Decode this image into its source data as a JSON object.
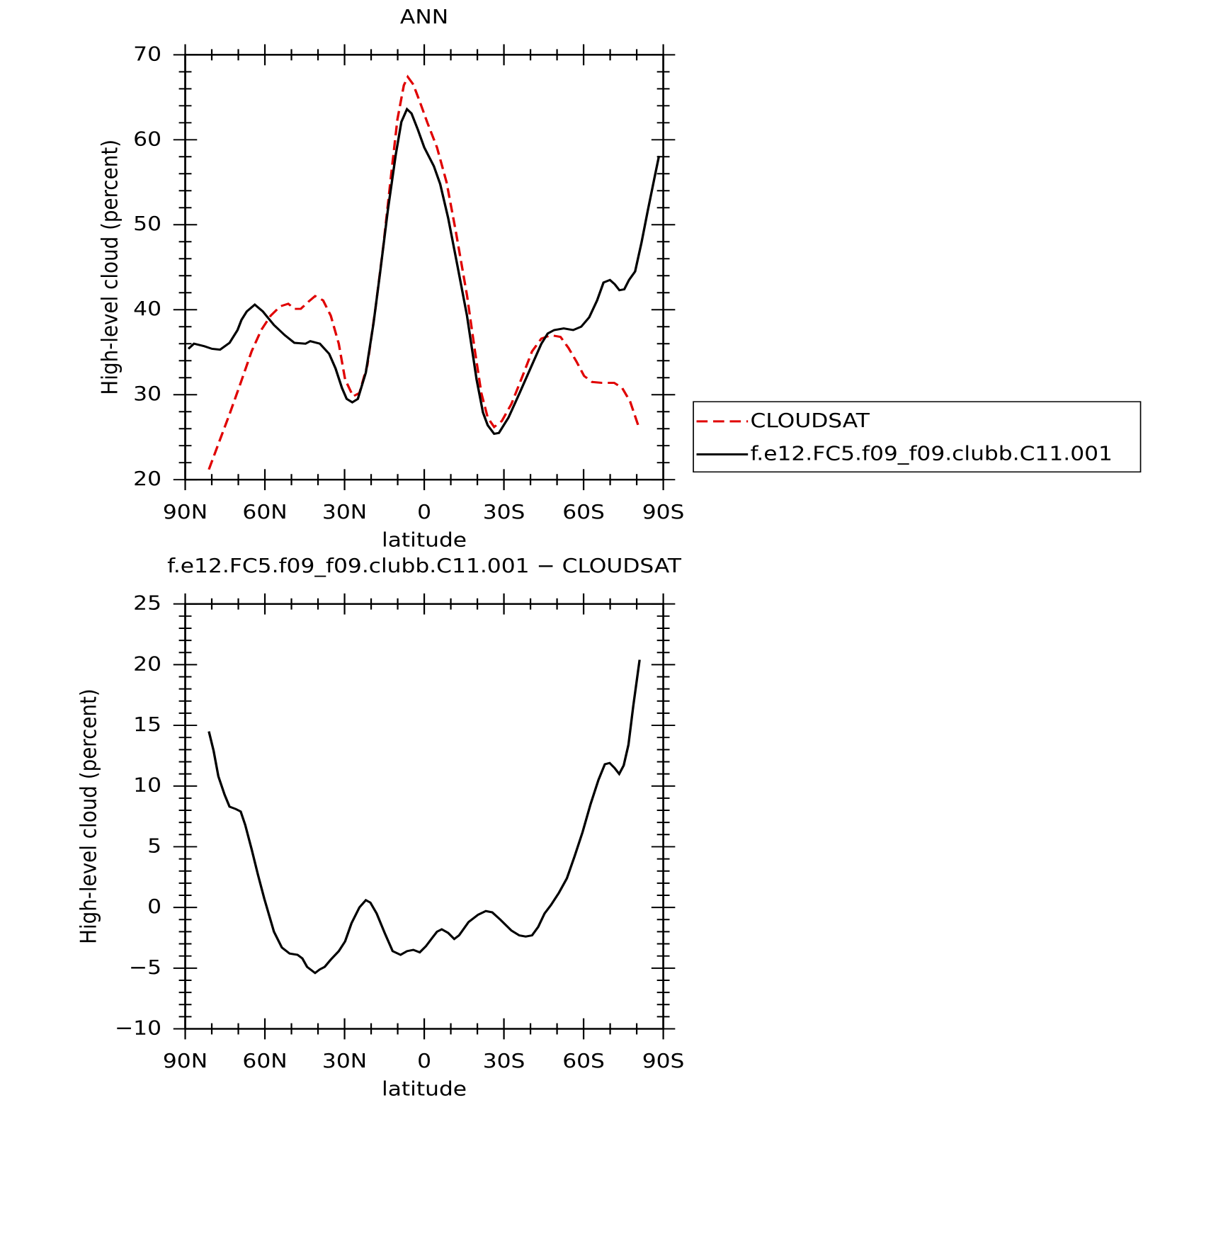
{
  "chart_data": [
    {
      "type": "line",
      "title": "ANN",
      "xlabel": "latitude",
      "ylabel": "High-level cloud (percent)",
      "xlim": [
        90,
        -90
      ],
      "xticks": [
        {
          "value": 90,
          "label": "90N"
        },
        {
          "value": 60,
          "label": "60N"
        },
        {
          "value": 30,
          "label": "30N"
        },
        0,
        {
          "value": -30,
          "label": "30S"
        },
        {
          "value": -60,
          "label": "60S"
        },
        {
          "value": -90,
          "label": "90S"
        }
      ],
      "ylim": [
        20,
        70
      ],
      "yticks": [
        20,
        30,
        40,
        50,
        60,
        70
      ],
      "legend": "right",
      "series": [
        {
          "name": "CLOUDSAT",
          "color": "#e00000",
          "linestyle": "dashed",
          "x": [
            81.1,
            77.5,
            73.3,
            69.1,
            65.0,
            61.4,
            57.8,
            54.2,
            51.2,
            48.9,
            46.5,
            44.1,
            41.1,
            38.1,
            35.2,
            32.2,
            29.8,
            26.8,
            24.4,
            21.4,
            18.4,
            15.4,
            12.5,
            10.1,
            7.7,
            6.2,
            4.1,
            1.7,
            -1.2,
            -4.8,
            -8.4,
            -11.9,
            -16.1,
            -19.1,
            -21.5,
            -23.9,
            -26.3,
            -29.2,
            -32.8,
            -37.0,
            -40.6,
            -44.1,
            -47.7,
            -51.3,
            -54.3,
            -57.3,
            -60.2,
            -63.2,
            -66.8,
            -71.5,
            -74.5,
            -77.5,
            -81.1
          ],
          "values": [
            21.2,
            24.2,
            27.7,
            31.4,
            35.1,
            37.6,
            39.3,
            40.4,
            40.7,
            40.1,
            40.1,
            40.8,
            41.6,
            41.1,
            39.3,
            36.0,
            31.8,
            29.8,
            30.2,
            33.5,
            40.1,
            47.5,
            55.8,
            62.4,
            66.4,
            67.4,
            66.5,
            64.5,
            62.0,
            59.1,
            55.0,
            49.2,
            41.7,
            35.1,
            30.2,
            27.3,
            26.2,
            26.9,
            28.9,
            32.2,
            35.1,
            36.6,
            37.0,
            36.8,
            35.5,
            33.9,
            32.2,
            31.5,
            31.4,
            31.4,
            30.8,
            29.2,
            25.9
          ]
        },
        {
          "name": "f.e12.FC5.f09_f09.clubb.C11.001",
          "color": "#000000",
          "linestyle": "solid",
          "x": [
            88.8,
            86.7,
            82.8,
            79.9,
            76.9,
            73.3,
            70.3,
            68.8,
            66.8,
            63.8,
            60.8,
            56.6,
            52.5,
            48.9,
            44.7,
            42.9,
            39.3,
            35.8,
            33.4,
            31.0,
            29.2,
            27.1,
            25.0,
            22.0,
            19.1,
            16.7,
            13.7,
            10.7,
            8.6,
            6.5,
            4.8,
            2.4,
            0,
            -3.6,
            -6.0,
            -9.0,
            -12.6,
            -16.1,
            -19.7,
            -22.1,
            -23.9,
            -26.3,
            -28.1,
            -31.7,
            -35.9,
            -40.0,
            -44.1,
            -46.5,
            -48.9,
            -52.5,
            -56.1,
            -59.1,
            -62.1,
            -65.1,
            -67.5,
            -69.9,
            -71.7,
            -73.5,
            -75.3,
            -77.1,
            -79.4,
            -81.8,
            -84.2,
            -86.6,
            -88.4
          ],
          "values": [
            35.4,
            36.0,
            35.7,
            35.4,
            35.3,
            36.1,
            37.6,
            38.8,
            39.8,
            40.6,
            39.8,
            38.2,
            37.0,
            36.1,
            36.0,
            36.3,
            36.0,
            34.8,
            33.1,
            30.8,
            29.5,
            29.1,
            29.5,
            32.6,
            38.4,
            44.2,
            51.7,
            58.3,
            62.1,
            63.6,
            63.1,
            61.2,
            59.1,
            56.9,
            54.8,
            50.8,
            45.0,
            39.3,
            31.8,
            27.9,
            26.4,
            25.4,
            25.5,
            27.3,
            30.2,
            33.1,
            36.0,
            37.2,
            37.6,
            37.8,
            37.6,
            38.0,
            39.1,
            41.1,
            43.2,
            43.5,
            43.0,
            42.3,
            42.4,
            43.5,
            44.5,
            47.9,
            51.7,
            55.4,
            58.1
          ]
        }
      ]
    },
    {
      "type": "line",
      "title": "f.e12.FC5.f09_f09.clubb.C11.001 − CLOUDSAT",
      "xlabel": "latitude",
      "ylabel": "High-level cloud (percent)",
      "xlim": [
        90,
        -90
      ],
      "xticks": [
        {
          "value": 90,
          "label": "90N"
        },
        {
          "value": 60,
          "label": "60N"
        },
        {
          "value": 30,
          "label": "30N"
        },
        0,
        {
          "value": -30,
          "label": "30S"
        },
        {
          "value": -60,
          "label": "60S"
        },
        {
          "value": -90,
          "label": "90S"
        }
      ],
      "ylim": [
        -10,
        25
      ],
      "yticks": [
        {
          "value": -10,
          "label": "−10"
        },
        {
          "value": -5,
          "label": "−5"
        },
        0,
        5,
        10,
        15,
        20,
        25
      ],
      "series": [
        {
          "color": "#000000",
          "linestyle": "solid",
          "x": [
            81.1,
            79.3,
            77.5,
            75.2,
            73.3,
            70.9,
            69.1,
            67.4,
            65.0,
            62.6,
            60.2,
            56.6,
            53.6,
            50.7,
            47.7,
            45.9,
            44.1,
            41.1,
            39.3,
            37.5,
            35.2,
            32.2,
            29.8,
            27.4,
            24.4,
            22.0,
            20.3,
            17.9,
            14.9,
            11.9,
            8.9,
            6.5,
            4.1,
            1.7,
            -0.6,
            -3.0,
            -4.8,
            -6.6,
            -9.0,
            -11.3,
            -13.1,
            -16.7,
            -20.3,
            -23.2,
            -25.6,
            -28.6,
            -32.8,
            -35.8,
            -38.2,
            -40.6,
            -42.9,
            -45.3,
            -47.7,
            -50.7,
            -53.7,
            -56.6,
            -59.6,
            -62.6,
            -65.6,
            -68.0,
            -69.8,
            -71.6,
            -73.4,
            -75.1,
            -76.9,
            -78.7,
            -81.1
          ],
          "values": [
            14.5,
            12.9,
            10.8,
            9.3,
            8.3,
            8.1,
            7.9,
            6.8,
            4.8,
            2.7,
            0.7,
            -2.0,
            -3.3,
            -3.8,
            -3.9,
            -4.2,
            -4.9,
            -5.4,
            -5.1,
            -4.9,
            -4.3,
            -3.6,
            -2.8,
            -1.3,
            0.0,
            0.6,
            0.4,
            -0.5,
            -2.1,
            -3.6,
            -3.9,
            -3.6,
            -3.5,
            -3.7,
            -3.2,
            -2.5,
            -2.0,
            -1.8,
            -2.1,
            -2.6,
            -2.3,
            -1.2,
            -0.6,
            -0.3,
            -0.4,
            -1.0,
            -1.9,
            -2.3,
            -2.4,
            -2.3,
            -1.6,
            -0.5,
            0.2,
            1.2,
            2.4,
            4.2,
            6.2,
            8.5,
            10.5,
            11.8,
            11.9,
            11.5,
            11.0,
            11.7,
            13.4,
            16.6,
            20.4
          ]
        }
      ]
    }
  ]
}
